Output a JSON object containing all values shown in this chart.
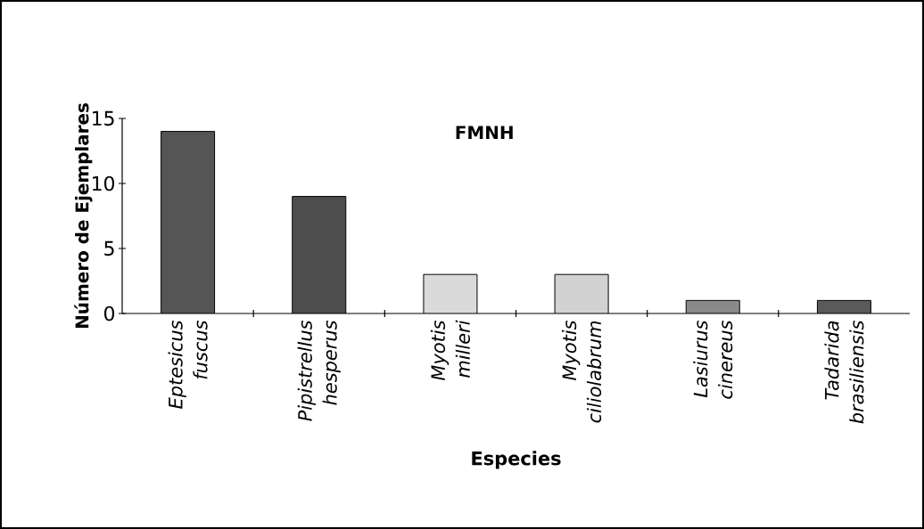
{
  "chart_data": {
    "type": "bar",
    "title": "FMNH",
    "xlabel": "Especies",
    "ylabel": "Número de Ejemplares",
    "categories": [
      "Eptesicus fuscus",
      "Pipistrellus hesperus",
      "Myotis milleri",
      "Myotis ciliolabrum",
      "Lasiurus cinereus",
      "Tadarida brasiliensis"
    ],
    "values": [
      14,
      9,
      3,
      3,
      1,
      1
    ],
    "colors": [
      "#555555",
      "#4d4d4d",
      "#dadada",
      "#d2d2d2",
      "#8a8a8a",
      "#5a5a5a"
    ],
    "ylim": [
      0,
      15
    ],
    "yticks": [
      0,
      5,
      10,
      15
    ],
    "grid": false
  }
}
